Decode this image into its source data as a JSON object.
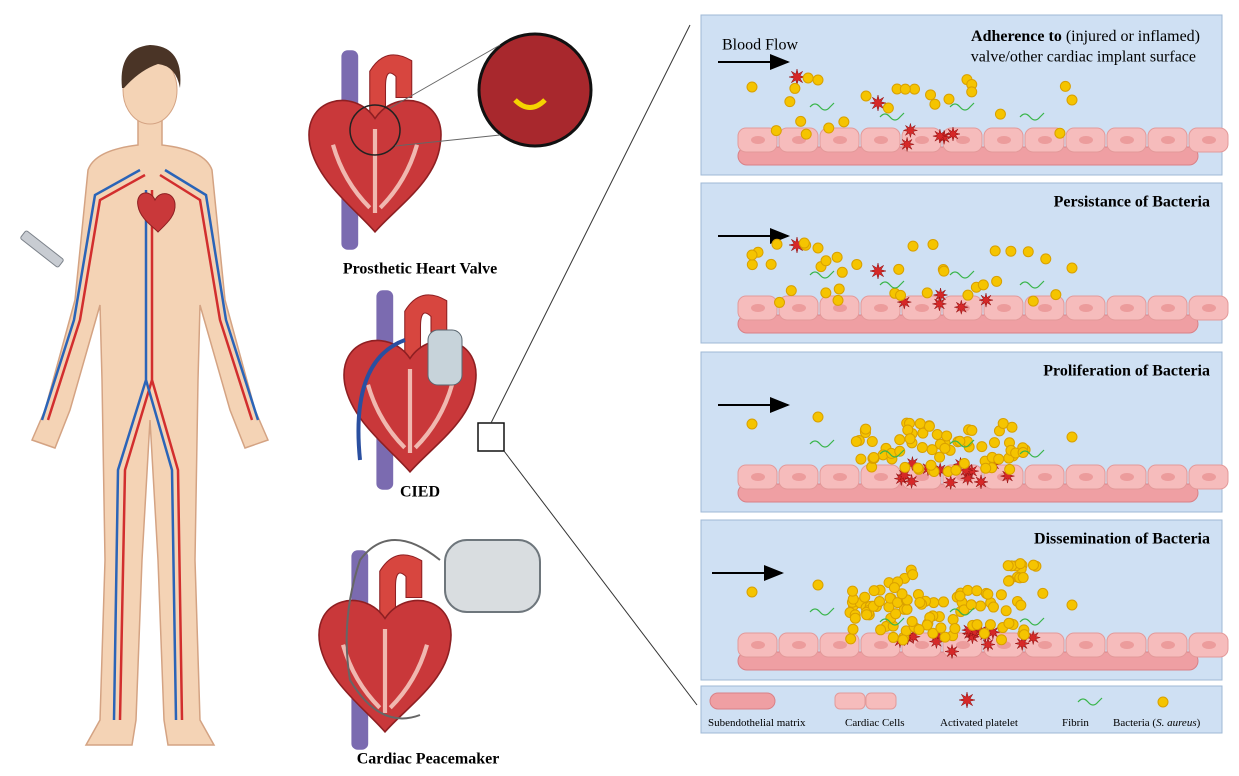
{
  "devices": [
    {
      "label": "Prosthetic Heart Valve"
    },
    {
      "label": "CIED"
    },
    {
      "label": "Cardiac Peacemaker"
    }
  ],
  "stages": [
    {
      "flow_label": "Blood Flow",
      "title": "Adherence to",
      "title_note": "(injured or inflamed)",
      "subtitle": "valve/other cardiac implant surface"
    },
    {
      "title": "Persistance of Bacteria"
    },
    {
      "title": "Proliferation of Bacteria"
    },
    {
      "title": "Dissemination of Bacteria"
    }
  ],
  "legend": [
    {
      "label": "Subendothelial matrix"
    },
    {
      "label": "Cardiac Cells"
    },
    {
      "label": "Activated platelet"
    },
    {
      "label": "Fibrin"
    },
    {
      "label": "Bacteria (",
      "label_italic": "S. aureus",
      "label_end": ")"
    }
  ]
}
